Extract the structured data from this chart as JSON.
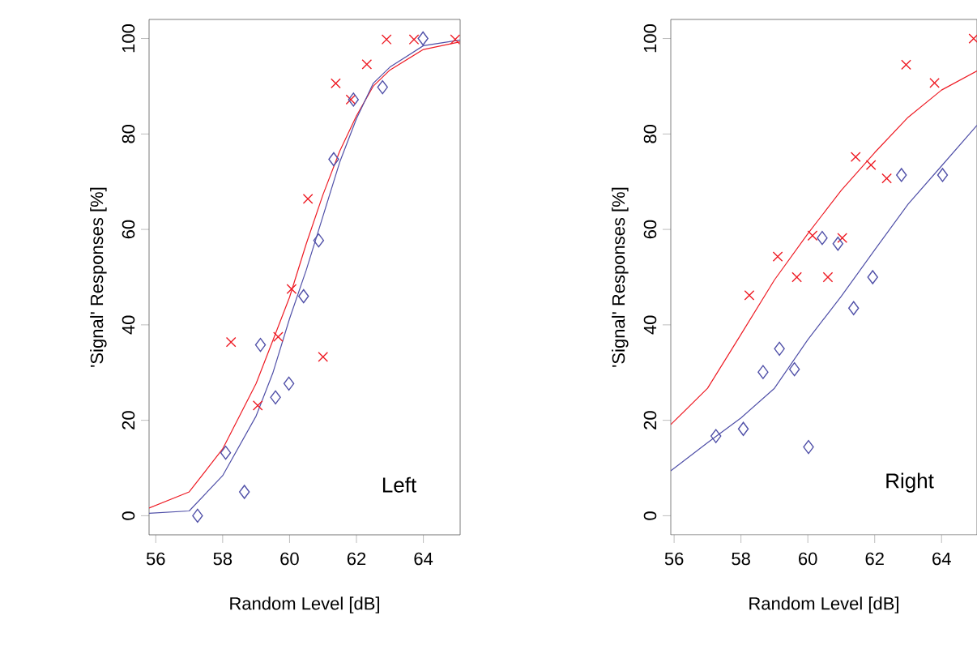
{
  "chart_data": [
    {
      "type": "scatter",
      "xlabel": "Random Level [dB]",
      "ylabel": "'Signal' Responses [%]",
      "annotations": [
        "Left"
      ],
      "xlim": [
        55.8,
        65.1
      ],
      "ylim": [
        -4,
        104
      ],
      "xticks": [
        56,
        58,
        60,
        62,
        64
      ],
      "yticks": [
        0,
        20,
        40,
        60,
        80,
        100
      ],
      "series": [
        {
          "type": "scatter",
          "marker": "cross",
          "color": "#ee1c25",
          "x": [
            58.25,
            59.05,
            59.66,
            60.06,
            60.55,
            61.0,
            61.38,
            61.83,
            62.31,
            62.9,
            63.72,
            64.95
          ],
          "values": [
            36.4,
            23.1,
            37.5,
            47.5,
            66.4,
            33.3,
            90.6,
            87.2,
            94.6,
            99.8,
            99.8,
            99.8
          ]
        },
        {
          "type": "scatter",
          "marker": "diamond",
          "color": "#5050a8",
          "x": [
            57.25,
            58.09,
            58.65,
            59.13,
            59.58,
            59.98,
            60.42,
            60.87,
            61.32,
            61.91,
            62.78,
            63.99
          ],
          "values": [
            0,
            13.2,
            5,
            35.8,
            24.8,
            27.7,
            46,
            57.7,
            74.7,
            87.2,
            89.8,
            100
          ]
        },
        {
          "type": "line",
          "marker": "none",
          "color": "#ee1c25",
          "x": [
            55.8,
            57,
            58,
            59,
            59.5,
            60,
            60.5,
            61,
            61.5,
            62,
            62.5,
            63,
            64,
            65.1
          ],
          "values": [
            1.6,
            5.0,
            14,
            27.7,
            36.7,
            45.8,
            57,
            67.3,
            76.4,
            83.8,
            90,
            93.4,
            97.7,
            99.3
          ]
        },
        {
          "type": "line",
          "marker": "none",
          "color": "#5050a8",
          "x": [
            55.8,
            57,
            58,
            59,
            59.5,
            60,
            60.5,
            61,
            61.5,
            62,
            62.5,
            63,
            64,
            65.1
          ],
          "values": [
            0.5,
            1,
            8.4,
            20.9,
            29.9,
            41.3,
            51.5,
            62.8,
            74.1,
            83.2,
            90.6,
            94,
            98.5,
            99.7
          ]
        }
      ]
    },
    {
      "type": "scatter",
      "xlabel": "Random Level [dB]",
      "ylabel": "'Signal' Responses [%]",
      "annotations": [
        "Right"
      ],
      "xlim": [
        55.9,
        65.06
      ],
      "ylim": [
        -4,
        104
      ],
      "xticks": [
        56,
        58,
        60,
        62,
        64
      ],
      "yticks": [
        0,
        20,
        40,
        60,
        80,
        100
      ],
      "series": [
        {
          "type": "scatter",
          "marker": "cross",
          "color": "#ee1c25",
          "x": [
            58.25,
            59.1,
            59.67,
            60.14,
            60.6,
            61.03,
            61.43,
            61.89,
            62.36,
            62.94,
            63.79,
            64.96
          ],
          "values": [
            46.2,
            54.3,
            50,
            58.7,
            50,
            58.2,
            75.2,
            73.5,
            70.7,
            94.5,
            90.7,
            100
          ]
        },
        {
          "type": "scatter",
          "marker": "diamond",
          "color": "#5050a8",
          "x": [
            57.25,
            58.07,
            58.66,
            59.15,
            59.6,
            60.02,
            60.43,
            60.9,
            61.37,
            61.94,
            62.8,
            64.03
          ],
          "values": [
            16.7,
            18.2,
            30.1,
            35,
            30.7,
            14.4,
            58.2,
            57,
            43.5,
            50,
            71.4,
            71.4
          ]
        },
        {
          "type": "line",
          "marker": "none",
          "color": "#ee1c25",
          "x": [
            55.9,
            57,
            58,
            59,
            60,
            61,
            62,
            63,
            64,
            65.06
          ],
          "values": [
            19.1,
            26.7,
            38,
            49.4,
            59.1,
            68.2,
            76.1,
            83.5,
            89.2,
            93.2
          ]
        },
        {
          "type": "line",
          "marker": "none",
          "color": "#5050a8",
          "x": [
            55.9,
            57,
            58,
            59,
            60,
            61,
            62,
            63,
            64,
            65.06
          ],
          "values": [
            9.4,
            15.3,
            20.5,
            26.7,
            36.9,
            46,
            55.7,
            65.3,
            73.3,
            81.8
          ]
        }
      ]
    }
  ]
}
